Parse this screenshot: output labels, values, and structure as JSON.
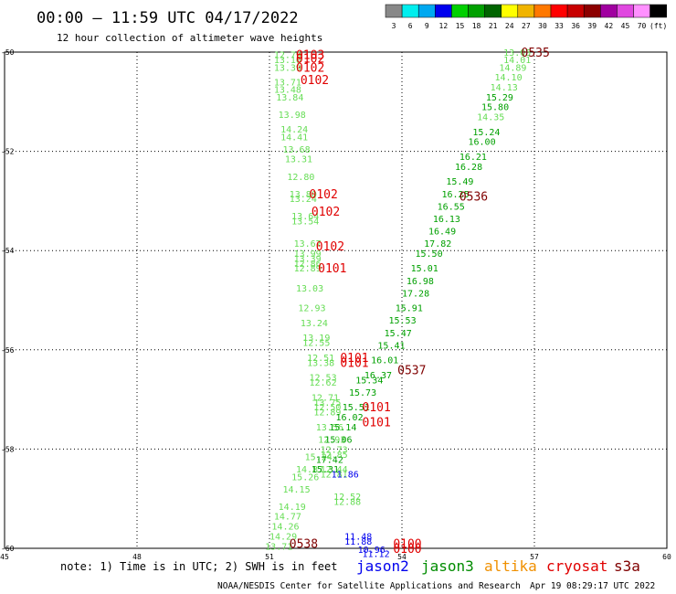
{
  "header": {
    "title": "00:00 – 11:59 UTC 04/17/2022",
    "subtitle": "12 hour collection of altimeter wave heights"
  },
  "colorbar": {
    "labels": [
      "3",
      "6",
      "9",
      "12",
      "15",
      "18",
      "21",
      "24",
      "27",
      "30",
      "33",
      "36",
      "39",
      "42",
      "45",
      "70",
      "(ft)"
    ],
    "colors": [
      "#888888",
      "#00eeee",
      "#00a8f0",
      "#0000ee",
      "#00d000",
      "#00a000",
      "#006400",
      "#ffff00",
      "#f0b400",
      "#ff7800",
      "#ff0000",
      "#c80000",
      "#8c0000",
      "#a000a0",
      "#e048e0",
      "#ff90ff",
      "#000000"
    ]
  },
  "footer": {
    "note": "note: 1) Time is in UTC; 2) SWH is in feet",
    "credit": "NOAA/NESDIS Center for Satellite Applications and Research",
    "timestamp": "Apr 19 08:29:17 UTC 2022",
    "legend": [
      {
        "name": "jason2",
        "color": "#0000ee"
      },
      {
        "name": "jason3",
        "color": "#008c00"
      },
      {
        "name": "altika",
        "color": "#f09000"
      },
      {
        "name": "cryosat",
        "color": "#e00000"
      },
      {
        "name": "s3a",
        "color": "#800000"
      }
    ]
  },
  "chart_data": {
    "type": "scatter",
    "title": "00:00 – 11:59 UTC 04/17/2022",
    "subtitle": "12 hour collection of altimeter wave heights",
    "xlabel": "",
    "ylabel": "",
    "xlim": [
      45,
      60
    ],
    "ylim": [
      -60,
      -50
    ],
    "xticks": [
      45,
      48,
      51,
      54,
      57,
      60
    ],
    "yticks": [
      -50,
      -52,
      -54,
      -56,
      -58,
      -60
    ],
    "grid": true,
    "colors": {
      "light_green": "#66dd55",
      "green": "#00a000",
      "blue": "#0000ee",
      "red": "#e00000",
      "dark_red": "#800000"
    },
    "series": [
      {
        "name": "track-a",
        "color": "light_green",
        "points": [
          {
            "x": 51.1,
            "y": -50.05,
            "v": "12.79"
          },
          {
            "x": 51.1,
            "y": -50.15,
            "v": "13.10"
          },
          {
            "x": 51.1,
            "y": -50.3,
            "v": "13.39"
          },
          {
            "x": 51.1,
            "y": -50.6,
            "v": "13.71"
          },
          {
            "x": 51.1,
            "y": -50.75,
            "v": "13.48"
          },
          {
            "x": 51.15,
            "y": -50.9,
            "v": "13.84"
          },
          {
            "x": 51.2,
            "y": -51.25,
            "v": "13.98"
          },
          {
            "x": 51.25,
            "y": -51.55,
            "v": "14.24"
          },
          {
            "x": 51.25,
            "y": -51.7,
            "v": "14.41"
          },
          {
            "x": 51.3,
            "y": -51.95,
            "v": "13.68"
          },
          {
            "x": 51.35,
            "y": -52.15,
            "v": "13.31"
          },
          {
            "x": 51.4,
            "y": -52.5,
            "v": "12.80"
          },
          {
            "x": 51.45,
            "y": -52.85,
            "v": "13.80"
          },
          {
            "x": 51.45,
            "y": -52.95,
            "v": "13.24"
          },
          {
            "x": 51.5,
            "y": -53.3,
            "v": "13.64"
          },
          {
            "x": 51.5,
            "y": -53.4,
            "v": "13.54"
          },
          {
            "x": 51.55,
            "y": -53.85,
            "v": "13.67"
          },
          {
            "x": 51.55,
            "y": -54.05,
            "v": "13.99"
          },
          {
            "x": 51.55,
            "y": -54.15,
            "v": "13.39"
          },
          {
            "x": 51.55,
            "y": -54.25,
            "v": "12.86"
          },
          {
            "x": 51.55,
            "y": -54.35,
            "v": "12.89"
          },
          {
            "x": 51.6,
            "y": -54.75,
            "v": "13.03"
          },
          {
            "x": 51.65,
            "y": -55.15,
            "v": "12.93"
          },
          {
            "x": 51.7,
            "y": -55.45,
            "v": "13.24"
          },
          {
            "x": 51.75,
            "y": -55.75,
            "v": "13.19"
          },
          {
            "x": 51.75,
            "y": -55.85,
            "v": "12.55"
          },
          {
            "x": 51.85,
            "y": -56.15,
            "v": "12.51"
          },
          {
            "x": 51.85,
            "y": -56.25,
            "v": "13.38"
          },
          {
            "x": 51.9,
            "y": -56.55,
            "v": "12.53"
          },
          {
            "x": 51.9,
            "y": -56.65,
            "v": "12.62"
          },
          {
            "x": 51.95,
            "y": -56.95,
            "v": "12.71"
          },
          {
            "x": 52.0,
            "y": -57.05,
            "v": "13.75"
          },
          {
            "x": 52.0,
            "y": -57.15,
            "v": "12.50"
          },
          {
            "x": 52.0,
            "y": -57.25,
            "v": "12.89"
          },
          {
            "x": 52.05,
            "y": -57.55,
            "v": "13.56"
          },
          {
            "x": 52.1,
            "y": -57.8,
            "v": "12.93"
          },
          {
            "x": 52.15,
            "y": -58.0,
            "v": "12.73"
          },
          {
            "x": 52.15,
            "y": -58.1,
            "v": "12.85"
          },
          {
            "x": 52.15,
            "y": -58.4,
            "v": "12.44"
          },
          {
            "x": 52.15,
            "y": -58.5,
            "v": "12.81"
          },
          {
            "x": 52.45,
            "y": -58.95,
            "v": "12.52"
          },
          {
            "x": 52.45,
            "y": -59.05,
            "v": "12.88"
          },
          {
            "x": 51.3,
            "y": -58.8,
            "v": "14.15"
          },
          {
            "x": 51.2,
            "y": -59.15,
            "v": "14.19"
          },
          {
            "x": 51.1,
            "y": -59.35,
            "v": "14.77"
          },
          {
            "x": 51.05,
            "y": -59.55,
            "v": "14.26"
          },
          {
            "x": 51.0,
            "y": -59.75,
            "v": "14.29"
          },
          {
            "x": 50.9,
            "y": -59.95,
            "v": "13.71"
          },
          {
            "x": 51.6,
            "y": -58.4,
            "v": "14.87"
          },
          {
            "x": 51.5,
            "y": -58.55,
            "v": "15.26"
          },
          {
            "x": 51.8,
            "y": -58.15,
            "v": "15.24"
          },
          {
            "x": 56.3,
            "y": -50.0,
            "v": "13.05"
          },
          {
            "x": 56.3,
            "y": -50.15,
            "v": "14.01"
          },
          {
            "x": 56.2,
            "y": -50.3,
            "v": "14.89"
          },
          {
            "x": 56.1,
            "y": -50.5,
            "v": "14.10"
          },
          {
            "x": 56.0,
            "y": -50.7,
            "v": "14.13"
          },
          {
            "x": 55.7,
            "y": -51.3,
            "v": "14.35"
          }
        ]
      },
      {
        "name": "track-b",
        "color": "green",
        "points": [
          {
            "x": 55.9,
            "y": -50.9,
            "v": "15.29"
          },
          {
            "x": 55.8,
            "y": -51.1,
            "v": "15.80"
          },
          {
            "x": 55.6,
            "y": -51.6,
            "v": "15.24"
          },
          {
            "x": 55.5,
            "y": -51.8,
            "v": "16.00"
          },
          {
            "x": 55.3,
            "y": -52.1,
            "v": "16.21"
          },
          {
            "x": 55.2,
            "y": -52.3,
            "v": "16.28"
          },
          {
            "x": 55.0,
            "y": -52.6,
            "v": "15.49"
          },
          {
            "x": 54.9,
            "y": -52.85,
            "v": "16.25"
          },
          {
            "x": 54.8,
            "y": -53.1,
            "v": "16.55"
          },
          {
            "x": 54.7,
            "y": -53.35,
            "v": "16.13"
          },
          {
            "x": 54.6,
            "y": -53.6,
            "v": "16.49"
          },
          {
            "x": 54.5,
            "y": -53.85,
            "v": "17.82"
          },
          {
            "x": 54.3,
            "y": -54.05,
            "v": "15.50"
          },
          {
            "x": 54.2,
            "y": -54.35,
            "v": "15.01"
          },
          {
            "x": 54.1,
            "y": -54.6,
            "v": "16.98"
          },
          {
            "x": 54.0,
            "y": -54.85,
            "v": "17.28"
          },
          {
            "x": 53.85,
            "y": -55.15,
            "v": "15.91"
          },
          {
            "x": 53.7,
            "y": -55.4,
            "v": "15.53"
          },
          {
            "x": 53.6,
            "y": -55.65,
            "v": "15.47"
          },
          {
            "x": 53.45,
            "y": -55.9,
            "v": "15.41"
          },
          {
            "x": 53.3,
            "y": -56.2,
            "v": "16.01"
          },
          {
            "x": 53.15,
            "y": -56.5,
            "v": "16.37"
          },
          {
            "x": 52.95,
            "y": -56.6,
            "v": "15.34"
          },
          {
            "x": 52.8,
            "y": -56.85,
            "v": "15.73"
          },
          {
            "x": 52.65,
            "y": -57.15,
            "v": "15.51"
          },
          {
            "x": 52.5,
            "y": -57.35,
            "v": "16.02"
          },
          {
            "x": 52.35,
            "y": -57.55,
            "v": "15.14"
          },
          {
            "x": 52.25,
            "y": -57.8,
            "v": "15.06"
          },
          {
            "x": 52.05,
            "y": -58.2,
            "v": "17.42"
          },
          {
            "x": 51.95,
            "y": -58.4,
            "v": "15.31"
          }
        ]
      },
      {
        "name": "track-c",
        "color": "blue",
        "points": [
          {
            "x": 52.4,
            "y": -58.5,
            "v": "11.86"
          },
          {
            "x": 52.7,
            "y": -59.75,
            "v": "11.48"
          },
          {
            "x": 52.7,
            "y": -59.85,
            "v": "11.88"
          },
          {
            "x": 53.0,
            "y": -60.02,
            "v": "10.96"
          },
          {
            "x": 53.1,
            "y": -60.1,
            "v": "11.12"
          }
        ]
      }
    ],
    "tags": [
      {
        "x": 51.6,
        "y": -50.05,
        "v": "0103",
        "color": "red"
      },
      {
        "x": 51.6,
        "y": -50.12,
        "v": "0102",
        "color": "red"
      },
      {
        "x": 51.6,
        "y": -50.3,
        "v": "0102",
        "color": "red"
      },
      {
        "x": 51.7,
        "y": -50.55,
        "v": "0102",
        "color": "red"
      },
      {
        "x": 51.9,
        "y": -52.85,
        "v": "0102",
        "color": "red"
      },
      {
        "x": 51.95,
        "y": -53.2,
        "v": "0102",
        "color": "red"
      },
      {
        "x": 52.05,
        "y": -53.9,
        "v": "0102",
        "color": "red"
      },
      {
        "x": 52.1,
        "y": -54.35,
        "v": "0101",
        "color": "red"
      },
      {
        "x": 52.6,
        "y": -56.15,
        "v": "0101",
        "color": "red"
      },
      {
        "x": 52.6,
        "y": -56.25,
        "v": "0101",
        "color": "red"
      },
      {
        "x": 53.1,
        "y": -57.15,
        "v": "0101",
        "color": "red"
      },
      {
        "x": 53.1,
        "y": -57.45,
        "v": "0101",
        "color": "red"
      },
      {
        "x": 53.8,
        "y": -59.9,
        "v": "0100",
        "color": "red"
      },
      {
        "x": 53.8,
        "y": -60.0,
        "v": "0100",
        "color": "red"
      },
      {
        "x": 56.7,
        "y": -50.0,
        "v": "0535",
        "color": "dark_red"
      },
      {
        "x": 55.3,
        "y": -52.9,
        "v": "0536",
        "color": "dark_red"
      },
      {
        "x": 53.9,
        "y": -56.4,
        "v": "0537",
        "color": "dark_red"
      },
      {
        "x": 51.45,
        "y": -59.9,
        "v": "0538",
        "color": "dark_red"
      }
    ]
  }
}
